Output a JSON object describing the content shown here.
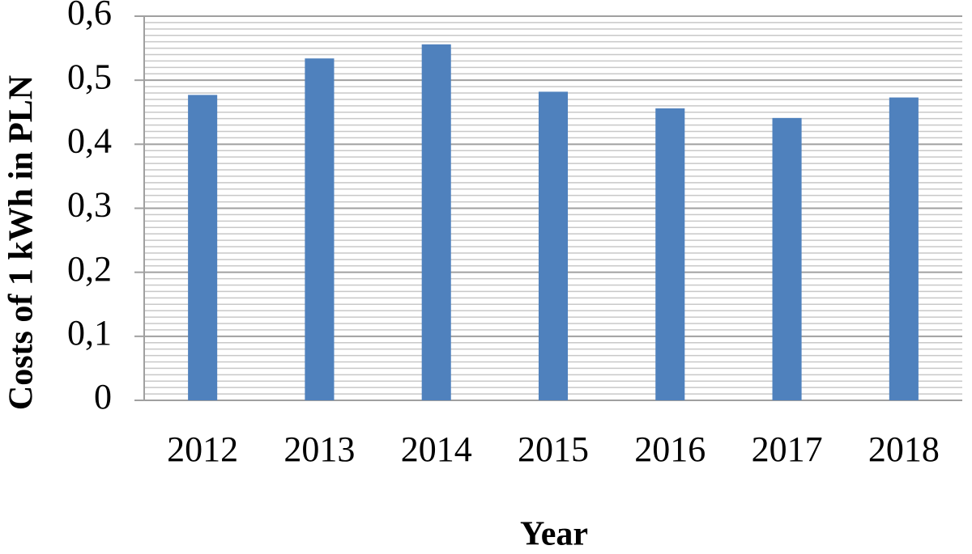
{
  "chart_data": {
    "type": "bar",
    "x_label": "Year",
    "y_label": "Costs of 1 kWh in PLN",
    "categories": [
      "2012",
      "2013",
      "2014",
      "2015",
      "2016",
      "2017",
      "2018"
    ],
    "values": [
      0.477,
      0.534,
      0.556,
      0.482,
      0.456,
      0.441,
      0.473
    ],
    "color": "#4f81bd",
    "ylim": [
      0,
      0.6
    ],
    "yticks": [
      0,
      {
        "value": 0.1,
        "label": "0,1"
      },
      {
        "value": 0.2,
        "label": "0,2"
      },
      {
        "value": 0.3,
        "label": "0,3"
      },
      {
        "value": 0.4,
        "label": "0,4"
      },
      {
        "value": 0.5,
        "label": "0,5"
      },
      {
        "value": 0.6,
        "label": "0,6"
      }
    ],
    "grid": true,
    "minor_grid": true
  }
}
